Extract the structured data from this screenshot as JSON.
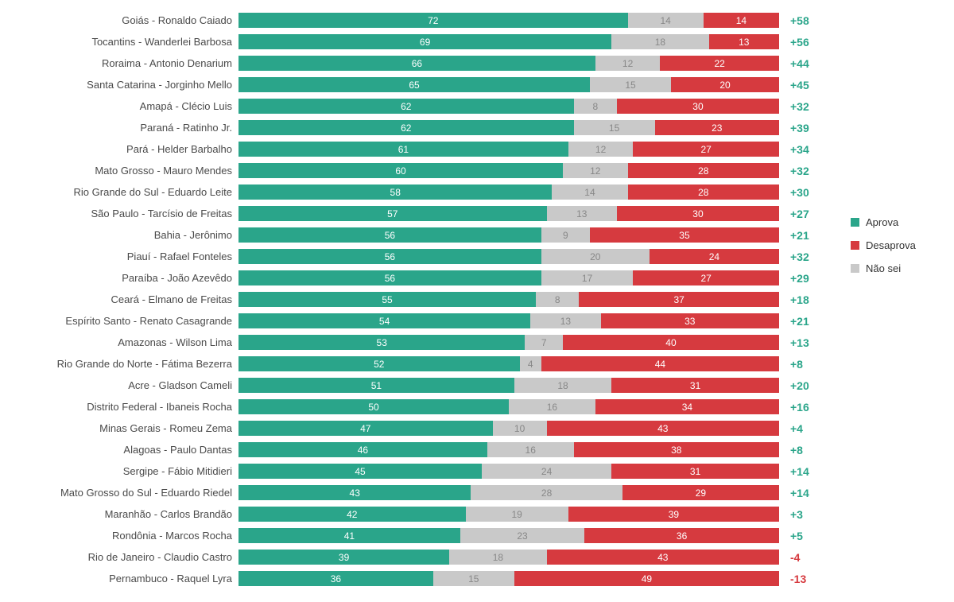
{
  "chart": {
    "type": "stacked-bar-horizontal",
    "colors": {
      "aprova": "#2aa58a",
      "naosei": "#c9c9c9",
      "desaprova": "#d63a3f",
      "gray_text": "#888888",
      "positive_diff": "#2aa58a",
      "negative_diff": "#d63a3f",
      "label_text": "#4a4a4a",
      "background": "#ffffff"
    },
    "font_sizes": {
      "label": 13,
      "segment": 12,
      "diff": 14,
      "legend": 13
    },
    "legend": [
      {
        "key": "aprova",
        "label": "Aprova"
      },
      {
        "key": "desaprova",
        "label": "Desaprova"
      },
      {
        "key": "naosei",
        "label": "Não sei"
      }
    ],
    "rows": [
      {
        "label": "Goiás - Ronaldo Caiado",
        "aprova": 72,
        "naosei": 14,
        "desaprova": 14,
        "diff": "+58"
      },
      {
        "label": "Tocantins - Wanderlei Barbosa",
        "aprova": 69,
        "naosei": 18,
        "desaprova": 13,
        "diff": "+56"
      },
      {
        "label": "Roraima - Antonio Denarium",
        "aprova": 66,
        "naosei": 12,
        "desaprova": 22,
        "diff": "+44"
      },
      {
        "label": "Santa Catarina - Jorginho Mello",
        "aprova": 65,
        "naosei": 15,
        "desaprova": 20,
        "diff": "+45"
      },
      {
        "label": "Amapá - Clécio Luis",
        "aprova": 62,
        "naosei": 8,
        "desaprova": 30,
        "diff": "+32"
      },
      {
        "label": "Paraná - Ratinho Jr.",
        "aprova": 62,
        "naosei": 15,
        "desaprova": 23,
        "diff": "+39"
      },
      {
        "label": "Pará - Helder Barbalho",
        "aprova": 61,
        "naosei": 12,
        "desaprova": 27,
        "diff": "+34"
      },
      {
        "label": "Mato Grosso - Mauro Mendes",
        "aprova": 60,
        "naosei": 12,
        "desaprova": 28,
        "diff": "+32"
      },
      {
        "label": "Rio Grande do Sul - Eduardo Leite",
        "aprova": 58,
        "naosei": 14,
        "desaprova": 28,
        "diff": "+30"
      },
      {
        "label": "São Paulo - Tarcísio de Freitas",
        "aprova": 57,
        "naosei": 13,
        "desaprova": 30,
        "diff": "+27"
      },
      {
        "label": "Bahia - Jerônimo",
        "aprova": 56,
        "naosei": 9,
        "desaprova": 35,
        "diff": "+21"
      },
      {
        "label": "Piauí - Rafael Fonteles",
        "aprova": 56,
        "naosei": 20,
        "desaprova": 24,
        "diff": "+32"
      },
      {
        "label": "Paraíba - João Azevêdo",
        "aprova": 56,
        "naosei": 17,
        "desaprova": 27,
        "diff": "+29"
      },
      {
        "label": "Ceará - Elmano de Freitas",
        "aprova": 55,
        "naosei": 8,
        "desaprova": 37,
        "diff": "+18"
      },
      {
        "label": "Espírito Santo - Renato Casagrande",
        "aprova": 54,
        "naosei": 13,
        "desaprova": 33,
        "diff": "+21"
      },
      {
        "label": "Amazonas - Wilson Lima",
        "aprova": 53,
        "naosei": 7,
        "desaprova": 40,
        "diff": "+13"
      },
      {
        "label": "Rio Grande do Norte - Fátima Bezerra",
        "aprova": 52,
        "naosei": 4,
        "desaprova": 44,
        "diff": "+8"
      },
      {
        "label": "Acre - Gladson Cameli",
        "aprova": 51,
        "naosei": 18,
        "desaprova": 31,
        "diff": "+20"
      },
      {
        "label": "Distrito Federal - Ibaneis Rocha",
        "aprova": 50,
        "naosei": 16,
        "desaprova": 34,
        "diff": "+16"
      },
      {
        "label": "Minas Gerais - Romeu Zema",
        "aprova": 47,
        "naosei": 10,
        "desaprova": 43,
        "diff": "+4"
      },
      {
        "label": "Alagoas - Paulo Dantas",
        "aprova": 46,
        "naosei": 16,
        "desaprova": 38,
        "diff": "+8"
      },
      {
        "label": "Sergipe - Fábio Mitidieri",
        "aprova": 45,
        "naosei": 24,
        "desaprova": 31,
        "diff": "+14"
      },
      {
        "label": "Mato Grosso do Sul - Eduardo Riedel",
        "aprova": 43,
        "naosei": 28,
        "desaprova": 29,
        "diff": "+14"
      },
      {
        "label": "Maranhão - Carlos Brandão",
        "aprova": 42,
        "naosei": 19,
        "desaprova": 39,
        "diff": "+3"
      },
      {
        "label": "Rondônia - Marcos Rocha",
        "aprova": 41,
        "naosei": 23,
        "desaprova": 36,
        "diff": "+5"
      },
      {
        "label": "Rio de Janeiro - Claudio Castro",
        "aprova": 39,
        "naosei": 18,
        "desaprova": 43,
        "diff": "-4"
      },
      {
        "label": "Pernambuco - Raquel Lyra",
        "aprova": 36,
        "naosei": 15,
        "desaprova": 49,
        "diff": "-13"
      }
    ]
  }
}
